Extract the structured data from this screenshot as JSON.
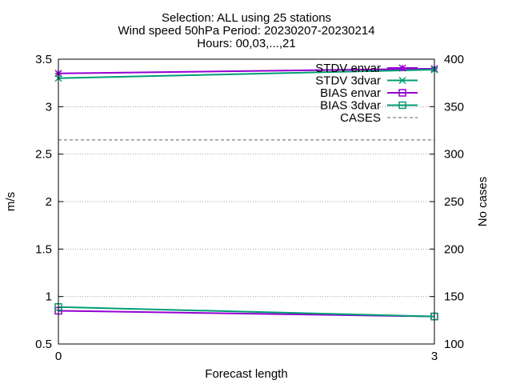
{
  "chart_data": {
    "type": "line",
    "title_lines": [
      "Selection: ALL using     25 stations",
      "Wind speed 50hPa   Period: 20230207-20230214",
      "Hours: 00,03,...,21"
    ],
    "xlabel": "Forecast length",
    "ylabel": "m/s",
    "y2label": "No cases",
    "x_ticks": [
      0,
      3
    ],
    "xlim": [
      0,
      3
    ],
    "y_ticks": [
      "0.5",
      "1",
      "1.5",
      "2",
      "2.5",
      "3",
      "3.5"
    ],
    "ylim": [
      0.5,
      3.5
    ],
    "y2_ticks": [
      "100",
      "150",
      "200",
      "250",
      "300",
      "350",
      "400"
    ],
    "y2lim": [
      100,
      400
    ],
    "grid": "horizontal dotted",
    "legend_position": "top-right",
    "series": [
      {
        "name": "STDV envar",
        "axis": "y",
        "color": "#9400d3",
        "marker": "star",
        "dash": false,
        "x": [
          0,
          3
        ],
        "values": [
          3.35,
          3.4
        ]
      },
      {
        "name": "STDV 3dvar",
        "axis": "y",
        "color": "#009e73",
        "marker": "x",
        "dash": false,
        "x": [
          0,
          3
        ],
        "values": [
          3.3,
          3.39
        ]
      },
      {
        "name": "BIAS envar",
        "axis": "y",
        "color": "#9400d3",
        "marker": "square",
        "dash": false,
        "x": [
          0,
          3
        ],
        "values": [
          0.85,
          0.79
        ]
      },
      {
        "name": "BIAS 3dvar",
        "axis": "y",
        "color": "#009e73",
        "marker": "square",
        "dash": false,
        "x": [
          0,
          3
        ],
        "values": [
          0.89,
          0.79
        ]
      },
      {
        "name": "CASES",
        "axis": "y2",
        "color": "#808080",
        "marker": "none",
        "dash": true,
        "x": [
          0,
          3
        ],
        "values": [
          315,
          315
        ]
      }
    ]
  }
}
